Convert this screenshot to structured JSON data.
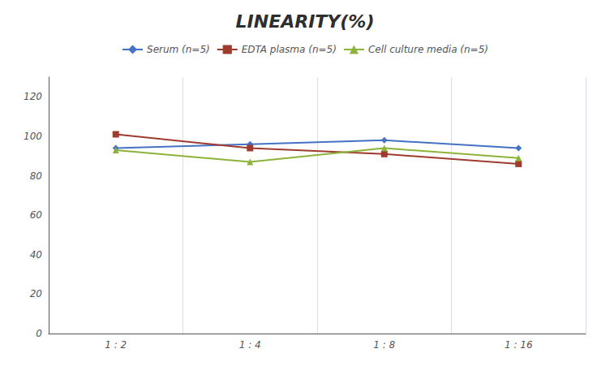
{
  "chart_data": {
    "type": "line",
    "title": "LINEARITY(%)",
    "categories": [
      "1 : 2",
      "1 : 4",
      "1 : 8",
      "1 : 16"
    ],
    "series": [
      {
        "name": "Serum (n=5)",
        "color": "#4472C4",
        "marker": "diamond",
        "values": [
          94,
          96,
          98,
          94
        ]
      },
      {
        "name": "EDTA plasma (n=5)",
        "color": "#9E3B2E",
        "marker": "square",
        "values": [
          101,
          94,
          91,
          86
        ]
      },
      {
        "name": "Cell culture media (n=5)",
        "color": "#8DB33A",
        "marker": "triangle",
        "values": [
          93,
          87,
          94,
          89
        ]
      }
    ],
    "ylim": [
      0,
      130
    ],
    "yticks": [
      0,
      20,
      40,
      60,
      80,
      100,
      120
    ],
    "grid": "x",
    "legend": "top"
  }
}
